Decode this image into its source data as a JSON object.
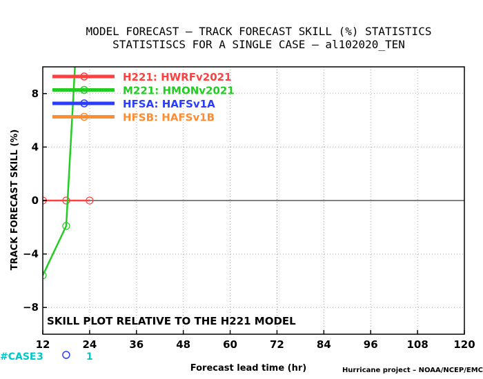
{
  "chart_data": {
    "type": "line",
    "title": "MODEL FORECAST – TRACK FORECAST SKILL (%) STATISTICS",
    "subtitle": "STATISTISCS FOR A SINGLE CASE – al102020_TEN",
    "xlabel": "Forecast lead time (hr)",
    "ylabel": "TRACK FORECAST SKILL (%)",
    "xlim": [
      12,
      120
    ],
    "ylim": [
      -10,
      10
    ],
    "xticks": [
      12,
      24,
      36,
      48,
      60,
      72,
      84,
      96,
      108,
      120
    ],
    "yticks": [
      -8,
      -4,
      0,
      4,
      8
    ],
    "grid": true,
    "legend_position": "top-left",
    "annotation": "SKILL PLOT RELATIVE TO THE H221 MODEL",
    "credit": "Hurricane project – NOAA/NCEP/EMC",
    "cases_label": "#CASE",
    "cases": [
      {
        "x": 12,
        "label": "3"
      },
      {
        "x": 24,
        "label": "1"
      }
    ],
    "series": [
      {
        "name": "H221:  HWRFv2021",
        "color": "#ff4040",
        "points": [
          [
            12,
            0
          ],
          [
            18,
            0
          ],
          [
            24,
            0
          ]
        ]
      },
      {
        "name": "M221:  HMONv2021",
        "color": "#22cc22",
        "points": [
          [
            12,
            -5.6
          ],
          [
            18,
            -1.9
          ],
          [
            24,
            30
          ]
        ]
      },
      {
        "name": "HFSA:  HAFSv1A",
        "color": "#2a3cff",
        "points": []
      },
      {
        "name": "HFSB:  HAFSv1B",
        "color": "#ff8c30",
        "points": []
      }
    ]
  }
}
